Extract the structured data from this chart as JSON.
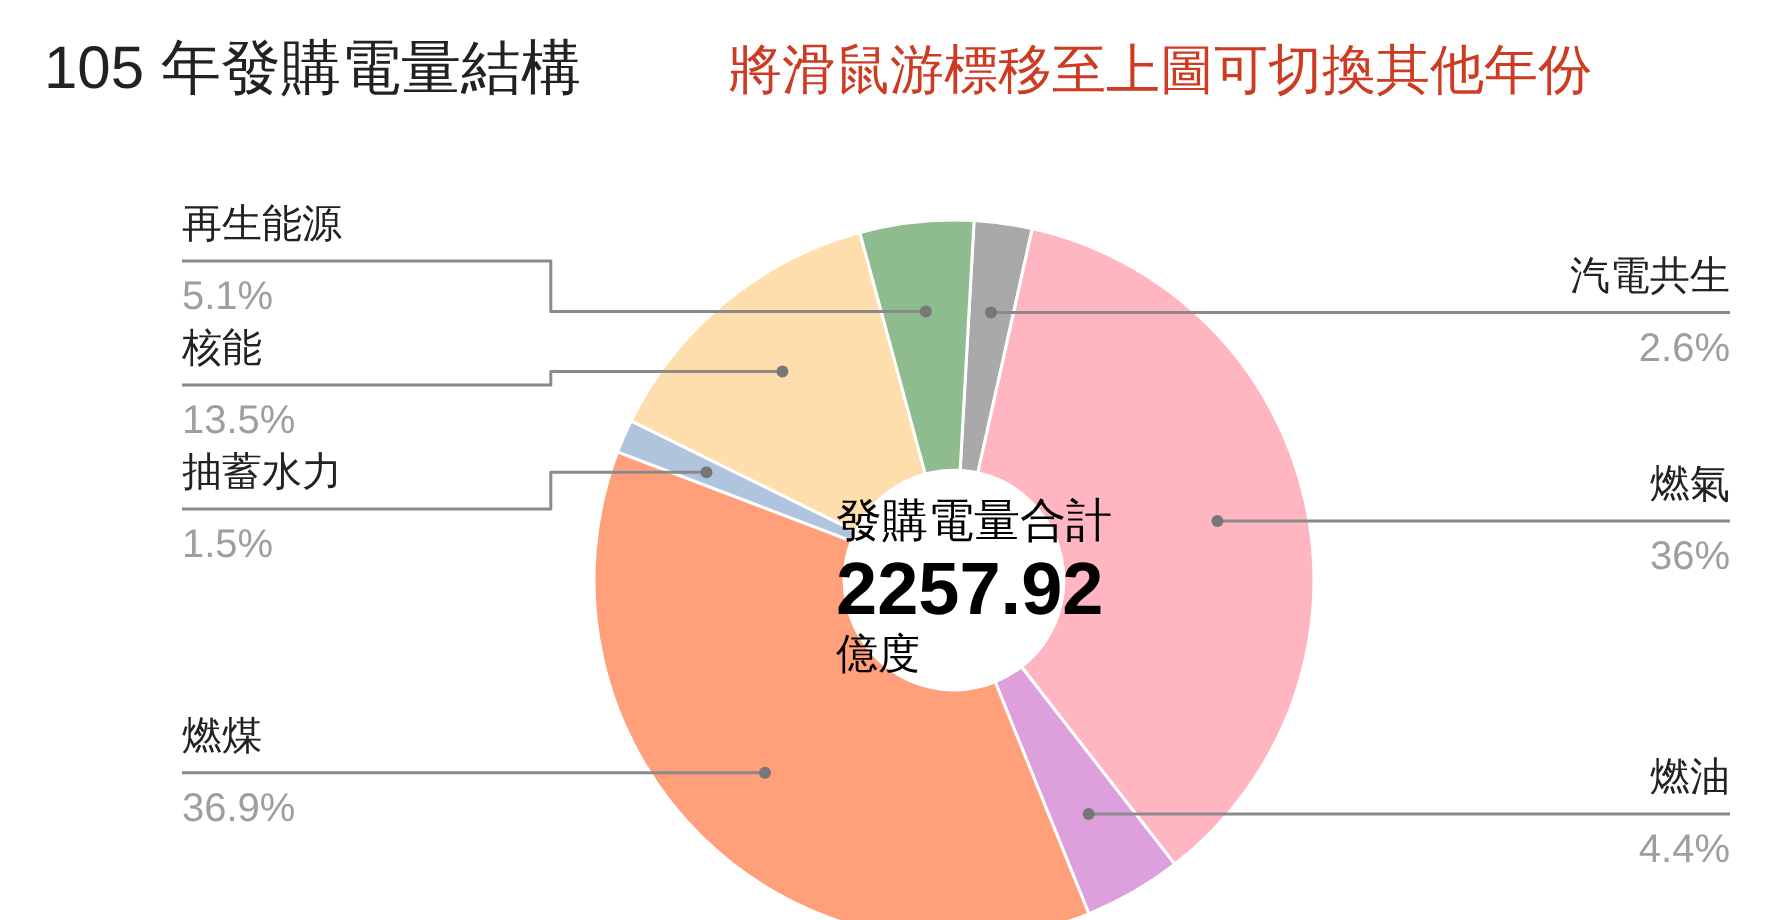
{
  "chart_data": {
    "type": "donut",
    "title": "105 年發購電量結構",
    "subtitle": "將滑鼠游標移至上圖可切換其他年份",
    "categories": [
      "汽電共生",
      "燃氣",
      "燃油",
      "燃煤",
      "抽蓄水力",
      "核能",
      "再生能源"
    ],
    "values": [
      2.6,
      36,
      4.4,
      36.9,
      1.5,
      13.5,
      5.1
    ],
    "colors": [
      "#a9a9a9",
      "#ffb6c1",
      "#dda0dd",
      "#ffa07a",
      "#b0c4de",
      "#ffdead",
      "#8fbc8f"
    ],
    "value_labels": [
      "2.6%",
      "36%",
      "4.4%",
      "36.9%",
      "1.5%",
      "13.5%",
      "5.1%"
    ],
    "annotations": [
      "發購電量合計",
      "2257.92",
      "億度"
    ]
  }
}
